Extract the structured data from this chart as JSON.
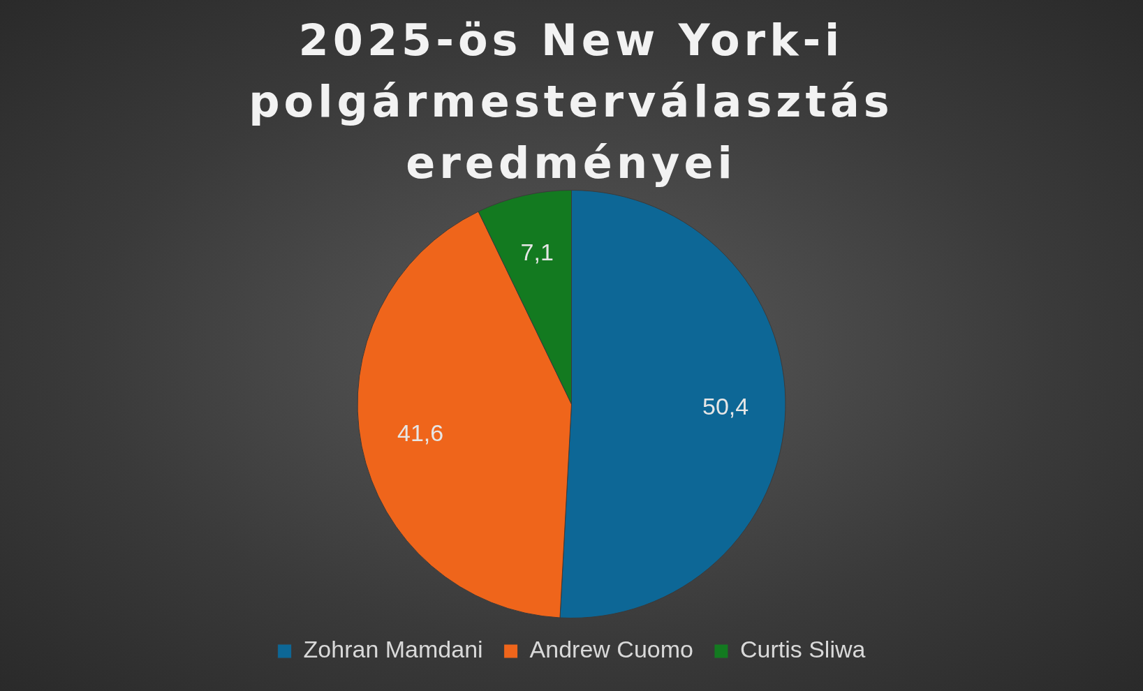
{
  "chart_data": {
    "type": "pie",
    "title": "2025-ös New York-i polgármesterválasztás eredményei",
    "categories": [
      "Zohran Mamdani",
      "Andrew Cuomo",
      "Curtis Sliwa"
    ],
    "values": [
      50.4,
      41.6,
      7.1
    ],
    "colors": [
      "#0d6796",
      "#ef651b",
      "#137a20"
    ],
    "value_labels": [
      "50,4",
      "41,6",
      "7,1"
    ],
    "legend": "bottom"
  }
}
